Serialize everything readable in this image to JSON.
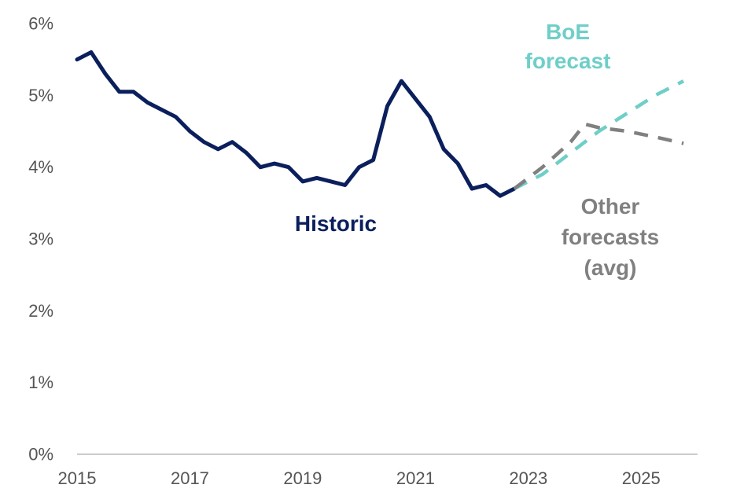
{
  "chart_data": {
    "type": "line",
    "title": "",
    "xlabel": "",
    "ylabel": "",
    "xlim": [
      2015,
      2026
    ],
    "ylim": [
      0,
      6
    ],
    "grid": false,
    "x_ticks": [
      "2015",
      "2017",
      "2019",
      "2021",
      "2023",
      "2025"
    ],
    "y_ticks": [
      "0%",
      "1%",
      "2%",
      "3%",
      "4%",
      "5%",
      "6%"
    ],
    "series": [
      {
        "name": "Historic",
        "label_lines": [
          "Historic"
        ],
        "color": "#0a1f5c",
        "dash": "solid",
        "x": [
          2015.0,
          2015.25,
          2015.5,
          2015.75,
          2016.0,
          2016.25,
          2016.5,
          2016.75,
          2017.0,
          2017.25,
          2017.5,
          2017.75,
          2018.0,
          2018.25,
          2018.5,
          2018.75,
          2019.0,
          2019.25,
          2019.5,
          2019.75,
          2020.0,
          2020.25,
          2020.5,
          2020.75,
          2021.0,
          2021.25,
          2021.5,
          2021.75,
          2022.0,
          2022.25,
          2022.5,
          2022.75
        ],
        "values": [
          5.5,
          5.6,
          5.3,
          5.05,
          5.05,
          4.9,
          4.8,
          4.7,
          4.5,
          4.35,
          4.25,
          4.35,
          4.2,
          4.0,
          4.05,
          4.0,
          3.8,
          3.85,
          3.8,
          3.75,
          4.0,
          4.1,
          4.85,
          5.2,
          4.95,
          4.7,
          4.25,
          4.05,
          3.7,
          3.75,
          3.6,
          3.7
        ]
      },
      {
        "name": "BoE forecast",
        "label_lines": [
          "BoE",
          "forecast"
        ],
        "color": "#6fcfc8",
        "dash": "dashed",
        "x": [
          2022.75,
          2023.25,
          2023.75,
          2024.25,
          2024.75,
          2025.25,
          2025.75
        ],
        "values": [
          3.7,
          3.9,
          4.2,
          4.5,
          4.75,
          5.0,
          5.2
        ]
      },
      {
        "name": "Other forecasts (avg)",
        "label_lines": [
          "Other",
          "forecasts",
          "(avg)"
        ],
        "color": "#808080",
        "dash": "dashed",
        "x": [
          2022.75,
          2023.25,
          2023.75,
          2024.0,
          2024.25,
          2024.75,
          2025.25,
          2025.75
        ],
        "values": [
          3.7,
          4.0,
          4.35,
          4.6,
          4.55,
          4.5,
          4.42,
          4.33
        ]
      }
    ]
  }
}
